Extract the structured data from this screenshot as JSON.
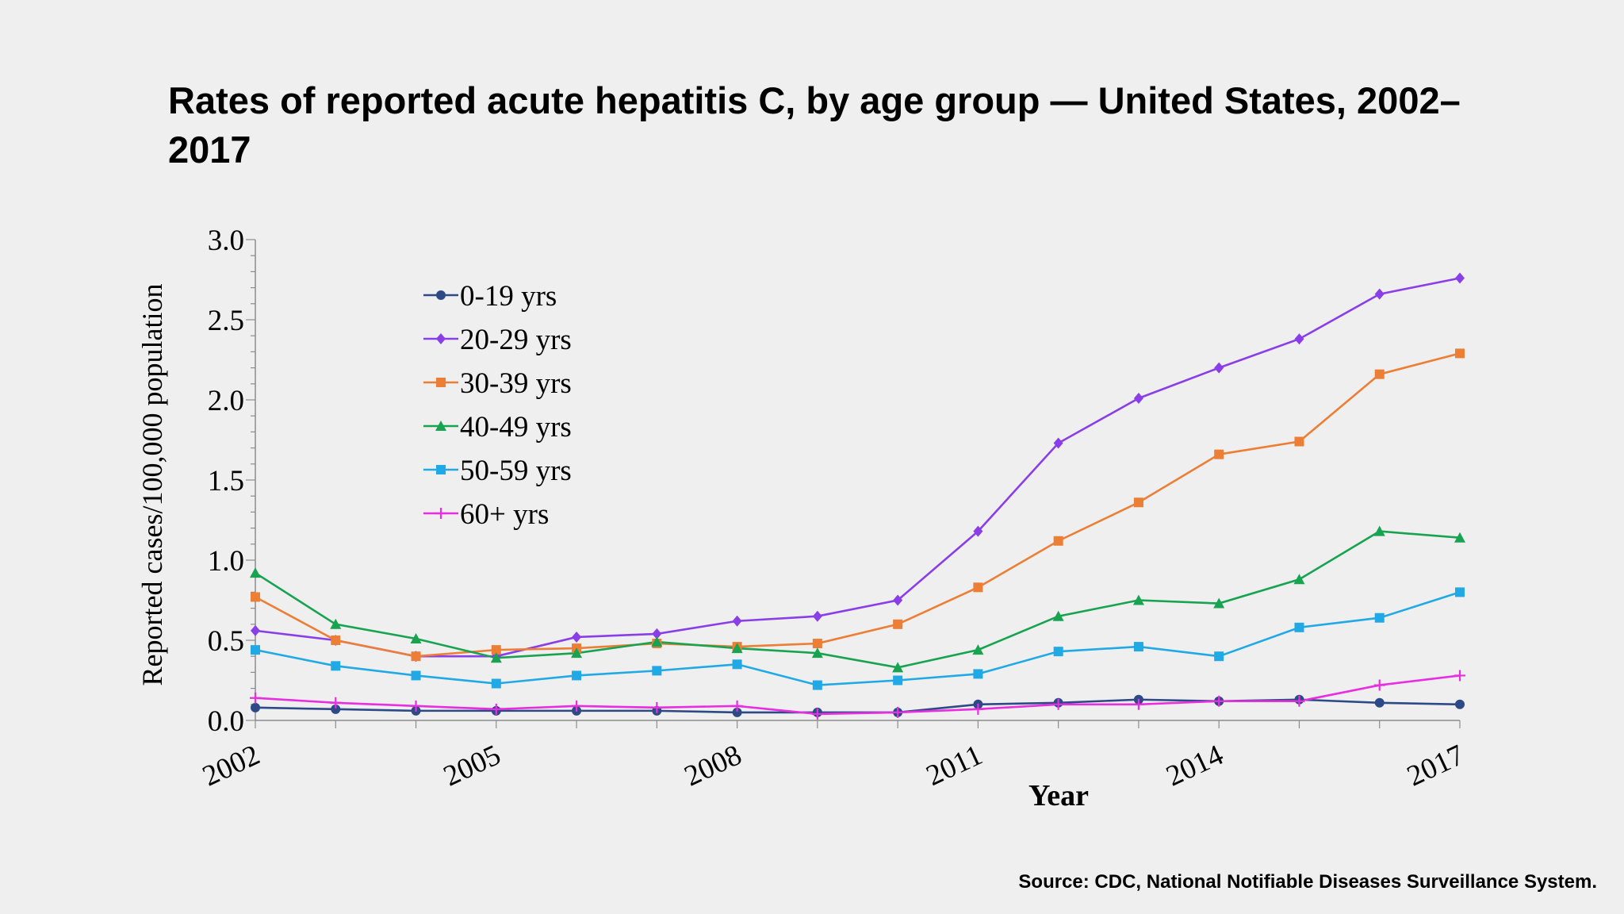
{
  "title": "Rates of reported acute hepatitis C, by age group — United States, 2002–2017",
  "source": "Source: CDC, National Notifiable Diseases Surveillance System.",
  "chart_data": {
    "type": "line",
    "title": "Rates of reported acute hepatitis C, by age group — United States, 2002–2017",
    "xlabel": "Year",
    "ylabel": "Reported cases/100,000 population",
    "x": [
      2002,
      2003,
      2004,
      2005,
      2006,
      2007,
      2008,
      2009,
      2010,
      2011,
      2012,
      2013,
      2014,
      2015,
      2016,
      2017
    ],
    "x_tick_labels": [
      "2002",
      "2005",
      "2008",
      "2011",
      "2014",
      "2017"
    ],
    "x_tick_values": [
      2002,
      2005,
      2008,
      2011,
      2014,
      2017
    ],
    "y_tick_labels": [
      "0.0",
      "0.5",
      "1.0",
      "1.5",
      "2.0",
      "2.5",
      "3.0"
    ],
    "y_tick_values": [
      0,
      0.5,
      1.0,
      1.5,
      2.0,
      2.5,
      3.0
    ],
    "ylim": [
      0,
      3.0
    ],
    "xlim": [
      2002,
      2017
    ],
    "grid": false,
    "legend_position": "top-left inside plot",
    "series": [
      {
        "name": "0-19 yrs",
        "color": "#2e4a86",
        "marker": "circle",
        "values": [
          0.08,
          0.07,
          0.06,
          0.06,
          0.06,
          0.06,
          0.05,
          0.05,
          0.05,
          0.1,
          0.11,
          0.13,
          0.12,
          0.13,
          0.11,
          0.1
        ]
      },
      {
        "name": "20-29 yrs",
        "color": "#8a3ee8",
        "marker": "diamond",
        "values": [
          0.56,
          0.5,
          0.4,
          0.4,
          0.52,
          0.54,
          0.62,
          0.65,
          0.75,
          1.18,
          1.73,
          2.01,
          2.2,
          2.38,
          2.66,
          2.76
        ]
      },
      {
        "name": "30-39 yrs",
        "color": "#ec7e35",
        "marker": "square",
        "values": [
          0.77,
          0.5,
          0.4,
          0.44,
          0.45,
          0.48,
          0.46,
          0.48,
          0.6,
          0.83,
          1.12,
          1.36,
          1.66,
          1.74,
          2.16,
          2.29
        ]
      },
      {
        "name": "40-49 yrs",
        "color": "#18a350",
        "marker": "triangle",
        "values": [
          0.92,
          0.6,
          0.51,
          0.39,
          0.42,
          0.49,
          0.45,
          0.42,
          0.33,
          0.44,
          0.65,
          0.75,
          0.73,
          0.88,
          1.18,
          1.14
        ]
      },
      {
        "name": "50-59 yrs",
        "color": "#20a9e4",
        "marker": "square",
        "values": [
          0.44,
          0.34,
          0.28,
          0.23,
          0.28,
          0.31,
          0.35,
          0.22,
          0.25,
          0.29,
          0.43,
          0.46,
          0.4,
          0.58,
          0.64,
          0.8
        ]
      },
      {
        "name": "60+ yrs",
        "color": "#e82fe0",
        "marker": "plus",
        "values": [
          0.14,
          0.11,
          0.09,
          0.07,
          0.09,
          0.08,
          0.09,
          0.04,
          0.05,
          0.07,
          0.1,
          0.1,
          0.12,
          0.12,
          0.22,
          0.28
        ]
      }
    ]
  }
}
